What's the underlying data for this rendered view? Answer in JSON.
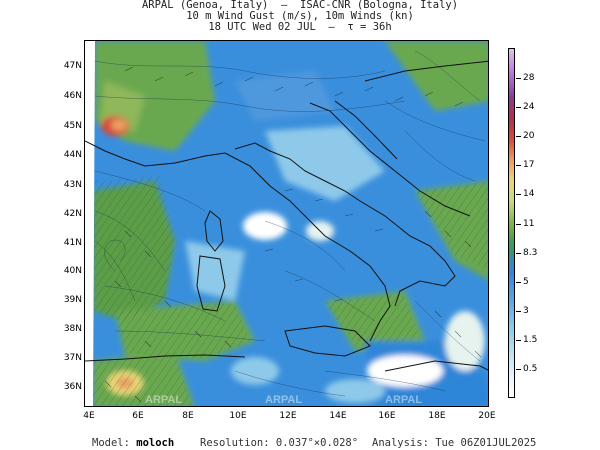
{
  "header": {
    "line1": "ARPAL (Genoa, Italy)  —  ISAC-CNR (Bologna, Italy)",
    "line2": "10 m Wind Gust (m/s), 10m Winds (kn)",
    "line3": "18 UTC Wed 02 JUL  —  τ = 36h"
  },
  "map": {
    "lat_labels": [
      "47N",
      "46N",
      "45N",
      "44N",
      "43N",
      "42N",
      "41N",
      "40N",
      "39N",
      "38N",
      "37N",
      "36N"
    ],
    "lon_labels": [
      "4E",
      "6E",
      "8E",
      "10E",
      "12E",
      "14E",
      "16E",
      "18E",
      "20E"
    ],
    "lat_range": [
      35.5,
      48.0
    ],
    "lon_range": [
      4,
      20
    ],
    "watermark": "ARPAL",
    "palette": {
      "land_green": "#6aa84f",
      "sea_blue": "#2f86d8",
      "light_blue": "#8ec9ea",
      "pale": "#d8eef6",
      "orange": "#e8a060",
      "red": "#d84a3a"
    }
  },
  "colorbar": {
    "unit": "m/s",
    "ticks": [
      "28",
      "24",
      "20",
      "17",
      "14",
      "11",
      "8.3",
      "5",
      "3",
      "1.5",
      "0.5"
    ]
  },
  "footer": {
    "model_label": "Model:",
    "model_value": "moloch",
    "resolution_label": "Resolution:",
    "resolution_value": "0.037°×0.028°",
    "analysis_label": "Analysis:",
    "analysis_value": "Tue 06Z01JUL2025"
  }
}
